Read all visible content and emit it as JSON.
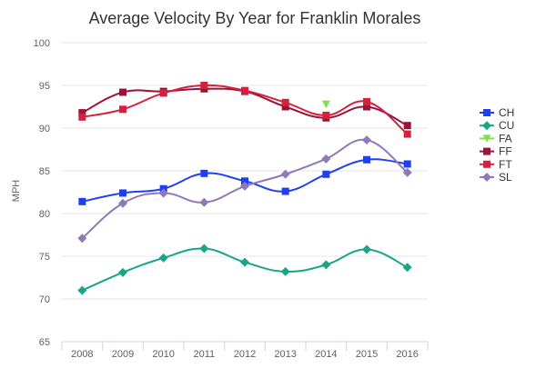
{
  "chart_data": {
    "type": "line",
    "title": "Average Velocity By Year for Franklin Morales",
    "xlabel": "",
    "ylabel": "MPH",
    "ylim": [
      65,
      100
    ],
    "yticks": [
      65,
      70,
      75,
      80,
      85,
      90,
      95,
      100
    ],
    "categories": [
      "2008",
      "2009",
      "2010",
      "2011",
      "2012",
      "2013",
      "2014",
      "2015",
      "2016"
    ],
    "grid": "horizontal",
    "legend": "right",
    "series": [
      {
        "name": "CH",
        "color": "#1f3ff0",
        "marker": "square",
        "values": [
          81.4,
          82.4,
          82.9,
          84.7,
          83.8,
          82.6,
          84.6,
          86.3,
          85.8
        ]
      },
      {
        "name": "CU",
        "color": "#1aa589",
        "marker": "diamond",
        "values": [
          71.0,
          73.1,
          74.8,
          75.9,
          74.3,
          73.2,
          74.0,
          75.8,
          73.7
        ]
      },
      {
        "name": "FA",
        "color": "#7ee34a",
        "marker": "triangle-down",
        "values": [
          null,
          null,
          null,
          null,
          null,
          null,
          92.8,
          null,
          null
        ]
      },
      {
        "name": "FF",
        "color": "#9b1338",
        "marker": "square",
        "values": [
          91.8,
          94.2,
          94.3,
          94.6,
          94.3,
          92.5,
          91.2,
          92.5,
          90.3
        ]
      },
      {
        "name": "FT",
        "color": "#d3223f",
        "marker": "square",
        "values": [
          91.3,
          92.2,
          94.1,
          95.0,
          94.4,
          93.0,
          91.5,
          93.1,
          89.3
        ]
      },
      {
        "name": "SL",
        "color": "#8f79b8",
        "marker": "diamond",
        "values": [
          77.1,
          81.2,
          82.4,
          81.3,
          83.2,
          84.6,
          86.4,
          88.6,
          84.8
        ]
      }
    ]
  }
}
